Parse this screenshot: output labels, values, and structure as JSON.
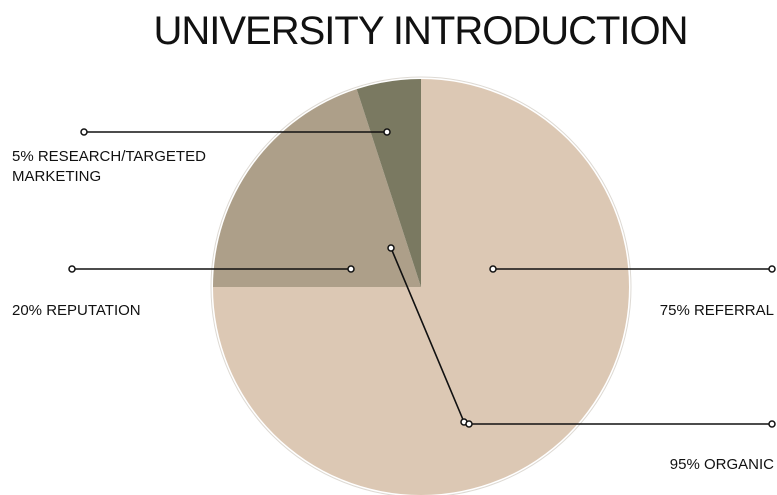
{
  "chart_data": {
    "type": "pie",
    "title": "UNIVERSITY INTRODUCTION",
    "slices": [
      {
        "label": "75% REFERRAL",
        "value": 75,
        "color": "#dcc8b4"
      },
      {
        "label": "20% REPUTATION",
        "value": 20,
        "color": "#ad9f89"
      },
      {
        "label": "5% RESEARCH/TARGETED MARKETING",
        "value": 5,
        "color": "#7a7961"
      }
    ],
    "callouts": [
      {
        "label": "95% ORGANIC"
      }
    ],
    "colors": {
      "background": "#ffffff",
      "leader_line": "#111111"
    }
  }
}
